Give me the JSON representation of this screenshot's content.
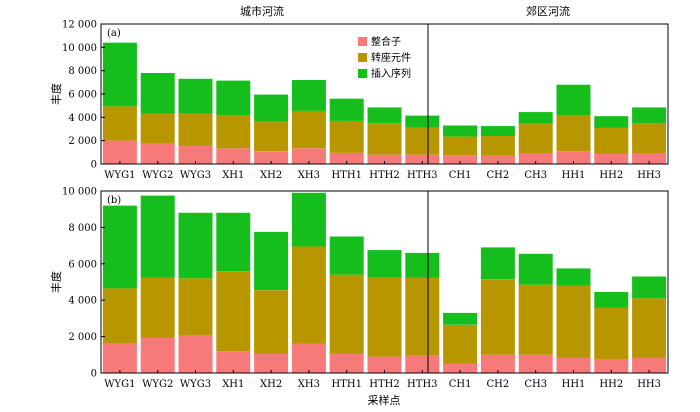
{
  "colors": {
    "integron": "#f77a7a",
    "transposon": "#b89600",
    "insertion_seq": "#15be1c"
  },
  "chart_data": [
    {
      "type": "bar",
      "stacked": true,
      "panel_label": "(a)",
      "region_titles": [
        "城市河流",
        "郊区河流"
      ],
      "categories": [
        "WYG1",
        "WYG2",
        "WYG3",
        "XH1",
        "XH2",
        "XH3",
        "HTH1",
        "HTH2",
        "HTH3",
        "CH1",
        "CH2",
        "CH3",
        "HH1",
        "HH2",
        "HH3"
      ],
      "ylabel": "丰度",
      "ylim": [
        0,
        12000
      ],
      "yticks": [
        0,
        2000,
        4000,
        6000,
        8000,
        10000,
        12000
      ],
      "ytick_labels": [
        "0",
        "2 000",
        "4 000",
        "6 000",
        "8 000",
        "10 000",
        "12 000"
      ],
      "legend": {
        "placement": "top-center"
      },
      "series": [
        {
          "name": "整合子",
          "values": [
            2000,
            1800,
            1550,
            1350,
            1100,
            1350,
            950,
            800,
            800,
            750,
            700,
            950,
            1100,
            900,
            950
          ]
        },
        {
          "name": "转座元件",
          "values": [
            2950,
            2500,
            2750,
            2850,
            2550,
            3200,
            2750,
            2700,
            2300,
            1600,
            1700,
            2500,
            3100,
            2200,
            2500
          ]
        },
        {
          "name": "插入序列",
          "values": [
            5450,
            3500,
            3000,
            2950,
            2300,
            2650,
            1900,
            1350,
            1050,
            950,
            850,
            1000,
            2600,
            1000,
            1400
          ]
        }
      ]
    },
    {
      "type": "bar",
      "stacked": true,
      "panel_label": "(b)",
      "categories": [
        "WYG1",
        "WYG2",
        "WYG3",
        "XH1",
        "XH2",
        "XH3",
        "HTH1",
        "HTH2",
        "HTH3",
        "CH1",
        "CH2",
        "CH3",
        "HH1",
        "HH2",
        "HH3"
      ],
      "xlabel": "采样点",
      "ylabel": "丰度",
      "ylim": [
        0,
        10000
      ],
      "yticks": [
        0,
        2000,
        4000,
        6000,
        8000,
        10000
      ],
      "ytick_labels": [
        "0",
        "2 000",
        "4 000",
        "6 000",
        "8 000",
        "10 000"
      ],
      "series": [
        {
          "name": "整合子",
          "values": [
            1650,
            1950,
            2050,
            1200,
            1050,
            1600,
            1050,
            900,
            950,
            500,
            1000,
            1000,
            850,
            750,
            850
          ]
        },
        {
          "name": "转座元件",
          "values": [
            3000,
            3300,
            3150,
            4400,
            3500,
            5350,
            4350,
            4350,
            4300,
            2150,
            4150,
            3850,
            3950,
            2850,
            3250
          ]
        },
        {
          "name": "插入序列",
          "values": [
            4550,
            4500,
            3600,
            3200,
            3200,
            2950,
            2100,
            1500,
            1350,
            650,
            1750,
            1700,
            950,
            850,
            1200
          ]
        }
      ]
    }
  ]
}
